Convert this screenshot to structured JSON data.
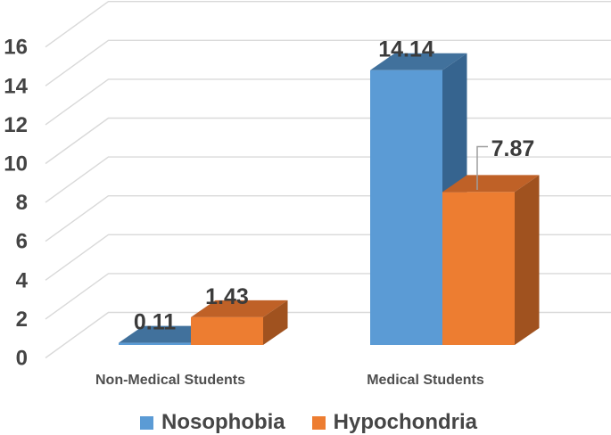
{
  "figure": {
    "background": "#FFFFFF"
  },
  "chart_data": {
    "type": "bar",
    "subtype": "3d-clustered-column",
    "title": "",
    "xlabel": "",
    "ylabel": "",
    "categories": [
      "Non-Medical Students",
      "Medical Students"
    ],
    "series": [
      {
        "name": "Nosophobia",
        "color": "#5B9BD5",
        "values": [
          0.11,
          14.14
        ]
      },
      {
        "name": "Hypochondria",
        "color": "#ED7D31",
        "values": [
          1.43,
          7.87
        ]
      }
    ],
    "data_labels": {
      "visible": true,
      "texts": [
        [
          "0.11",
          "14.14"
        ],
        [
          "1.43",
          "7.87"
        ]
      ]
    },
    "y_axis": {
      "min": 0,
      "max": 16,
      "step": 2,
      "ticks": [
        "0",
        "2",
        "4",
        "6",
        "8",
        "10",
        "12",
        "14",
        "16"
      ]
    },
    "grid": "horizontal-3d",
    "legend": {
      "position": "bottom",
      "entries": [
        "Nosophobia",
        "Hypochondria"
      ]
    },
    "annotations": {
      "moved_label": {
        "series": "Hypochondria",
        "category": "Medical Students",
        "text": "7.87",
        "has_leader_line": true
      }
    }
  },
  "colors": {
    "nosophobia_front": "#5B9BD5",
    "nosophobia_top": "#41719C",
    "nosophobia_side": "#36648F",
    "hypochondria_front": "#ED7D31",
    "hypochondria_top": "#BF6127",
    "hypochondria_side": "#A0521F",
    "gridline": "#D9D9D9",
    "axis_text": "#444444",
    "data_label_text": "#3B3B3B",
    "category_text": "#4F4F4F",
    "legend_text": "#464646",
    "leader_line": "#9E9E9E"
  }
}
